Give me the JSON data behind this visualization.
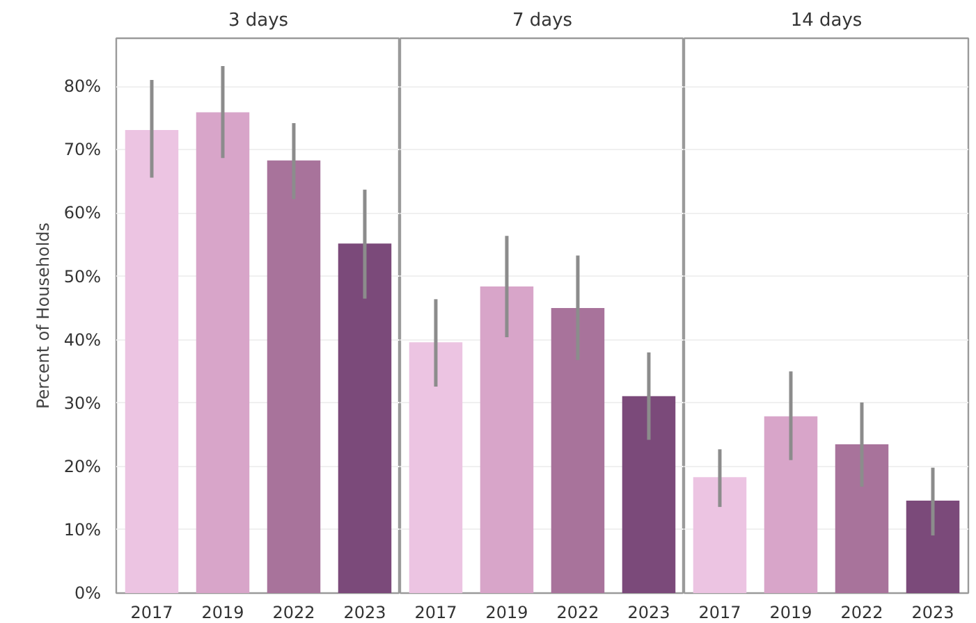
{
  "chart_data": [
    {
      "type": "bar",
      "title": "3 days",
      "ylabel": "Percent of Households",
      "categories": [
        "2017",
        "2019",
        "2022",
        "2023"
      ],
      "values": [
        73.1,
        75.9,
        68.3,
        55.2
      ],
      "errors": [
        [
          65.6,
          81.0
        ],
        [
          68.7,
          83.2
        ],
        [
          62.2,
          74.2
        ],
        [
          46.5,
          63.7
        ]
      ],
      "colors": [
        "#ecc4e2",
        "#d8a5c9",
        "#a8739b",
        "#7b4a7a"
      ],
      "ylim": [
        0,
        87.6
      ],
      "yticks": [
        {
          "value": 0,
          "label": "0%"
        },
        {
          "value": 10,
          "label": "10%"
        },
        {
          "value": 20,
          "label": "20%"
        },
        {
          "value": 30,
          "label": "30%"
        },
        {
          "value": 40,
          "label": "40%"
        },
        {
          "value": 50,
          "label": "50%"
        },
        {
          "value": 60,
          "label": "60%"
        },
        {
          "value": 70,
          "label": "70%"
        },
        {
          "value": 80,
          "label": "80%"
        }
      ],
      "grid": "y"
    },
    {
      "type": "bar",
      "title": "7 days",
      "categories": [
        "2017",
        "2019",
        "2022",
        "2023"
      ],
      "values": [
        39.6,
        48.4,
        45.0,
        31.1
      ],
      "errors": [
        [
          32.6,
          46.4
        ],
        [
          40.4,
          56.4
        ],
        [
          36.8,
          53.3
        ],
        [
          24.2,
          38.0
        ]
      ],
      "colors": [
        "#ecc4e2",
        "#d8a5c9",
        "#a8739b",
        "#7b4a7a"
      ],
      "ylim": [
        0,
        87.6
      ],
      "yticks": [
        0,
        10,
        20,
        30,
        40,
        50,
        60,
        70,
        80
      ],
      "grid": "y",
      "tick_labels": "x"
    },
    {
      "type": "bar",
      "title": "14 days",
      "categories": [
        "2017",
        "2019",
        "2022",
        "2023"
      ],
      "values": [
        18.3,
        27.9,
        23.5,
        14.6
      ],
      "errors": [
        [
          13.6,
          22.7
        ],
        [
          21.0,
          35.0
        ],
        [
          16.8,
          30.1
        ],
        [
          9.1,
          19.8
        ]
      ],
      "colors": [
        "#ecc4e2",
        "#d8a5c9",
        "#a8739b",
        "#7b4a7a"
      ],
      "ylim": [
        0,
        87.6
      ],
      "yticks": [
        0,
        10,
        20,
        30,
        40,
        50,
        60,
        70,
        80
      ],
      "grid": "y",
      "tick_labels": "x"
    }
  ]
}
